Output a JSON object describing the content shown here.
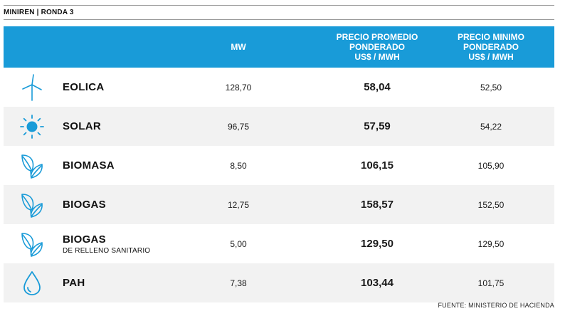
{
  "kicker": "MINIREN | RONDA 3",
  "colors": {
    "header_bg": "#199bd8",
    "accent": "#199bd8",
    "alt_row": "#f2f2f2"
  },
  "chart_data": {
    "type": "table",
    "title": "MINIREN | RONDA 3",
    "columns": [
      "",
      "MW",
      "PRECIO PROMEDIO PONDERADO US$ / MWH",
      "PRECIO MINIMO PONDERADO US$ / MWH"
    ],
    "header": {
      "mw": "MW",
      "avg": [
        "PRECIO PROMEDIO",
        "PONDERADO",
        "US$ / MWH"
      ],
      "min": [
        "PRECIO MINIMO",
        "PONDERADO",
        "US$ / MWH"
      ]
    },
    "rows": [
      {
        "icon": "wind-turbine-icon",
        "name": "EOLICA",
        "sub": "",
        "mw": "128,70",
        "avg": "58,04",
        "min": "52,50"
      },
      {
        "icon": "sun-icon",
        "name": "SOLAR",
        "sub": "",
        "mw": "96,75",
        "avg": "57,59",
        "min": "54,22"
      },
      {
        "icon": "leaves-icon",
        "name": "BIOMASA",
        "sub": "",
        "mw": "8,50",
        "avg": "106,15",
        "min": "105,90"
      },
      {
        "icon": "leaves-icon",
        "name": "BIOGAS",
        "sub": "",
        "mw": "12,75",
        "avg": "158,57",
        "min": "152,50"
      },
      {
        "icon": "leaves-icon",
        "name": "BIOGAS",
        "sub": "DE RELLENO SANITARIO",
        "mw": "5,00",
        "avg": "129,50",
        "min": "129,50"
      },
      {
        "icon": "water-drop-icon",
        "name": "PAH",
        "sub": "",
        "mw": "7,38",
        "avg": "103,44",
        "min": "101,75"
      }
    ],
    "source": "FUENTE: MINISTERIO DE HACIENDA"
  }
}
